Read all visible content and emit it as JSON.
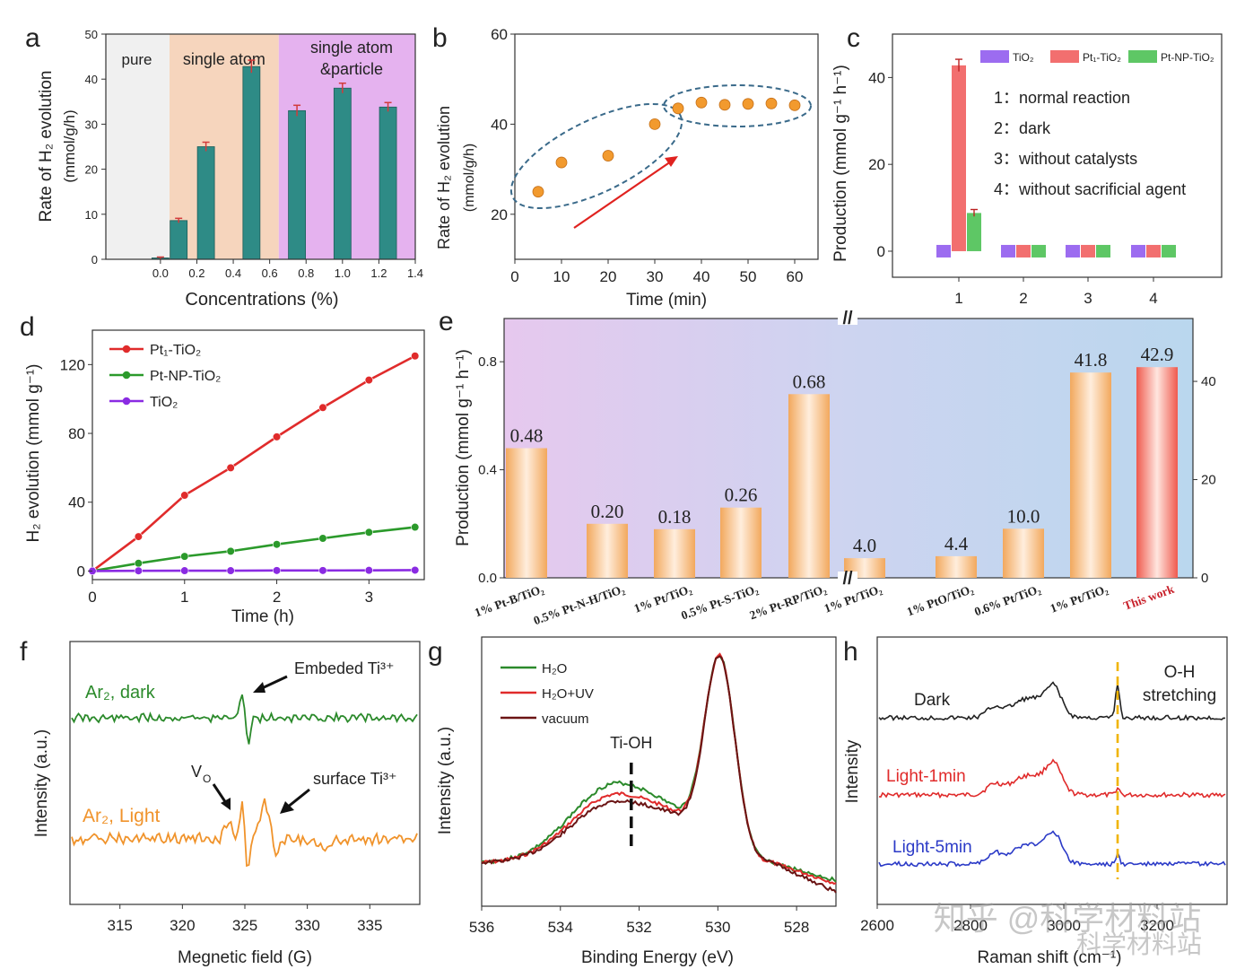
{
  "watermark": {
    "text1": "知乎 @科学材料站",
    "text2": "科学材料站"
  },
  "chart_data": [
    {
      "panel": "a",
      "type": "bar",
      "xlabel": "Concentrations (%)",
      "ylabel": "Rate of H₂ evolution",
      "ylabel2": "(mmol/g/h)",
      "xlim": [
        -0.3,
        1.4
      ],
      "ylim": [
        0,
        50
      ],
      "xticks": [
        "0.0",
        "0.2",
        "0.4",
        "0.6",
        "0.8",
        "1.0",
        "1.2",
        "1.4"
      ],
      "yticks": [
        "0",
        "10",
        "20",
        "30",
        "40",
        "50"
      ],
      "regions": [
        {
          "label": "pure",
          "x0": -0.3,
          "x1": 0.05,
          "color": "#f0f0f0"
        },
        {
          "label": "single atom",
          "x0": 0.05,
          "x1": 0.65,
          "color": "#f6d5bd"
        },
        {
          "label": "single atom",
          "label2": "&particle",
          "x0": 0.65,
          "x1": 1.4,
          "color": "#e5b2ef"
        }
      ],
      "bars": [
        {
          "x": 0.0,
          "y": 0.3,
          "err": 0.2
        },
        {
          "x": 0.1,
          "y": 8.6,
          "err": 0.5
        },
        {
          "x": 0.25,
          "y": 25.0,
          "err": 1.0
        },
        {
          "x": 0.5,
          "y": 42.8,
          "err": 1.4
        },
        {
          "x": 0.75,
          "y": 33.0,
          "err": 1.2
        },
        {
          "x": 1.0,
          "y": 38.0,
          "err": 1.1
        },
        {
          "x": 1.25,
          "y": 33.8,
          "err": 1.0
        }
      ],
      "bar_color": "#2e8b86"
    },
    {
      "panel": "b",
      "type": "scatter",
      "xlabel": "Time (min)",
      "ylabel": "Rate of H₂ evolution",
      "ylabel2": "(mmol/g/h)",
      "xlim": [
        0,
        65
      ],
      "ylim": [
        10,
        60
      ],
      "xticks": [
        "0",
        "10",
        "20",
        "30",
        "40",
        "50",
        "60"
      ],
      "yticks": [
        "20",
        "40",
        "60"
      ],
      "x": [
        5,
        10,
        20,
        30,
        35,
        40,
        45,
        50,
        55,
        60
      ],
      "y": [
        25,
        31.5,
        33,
        40,
        43.5,
        44.8,
        44.3,
        44.5,
        44.6,
        44.2
      ],
      "marker_color": "#f29a2e"
    },
    {
      "panel": "c",
      "type": "bar",
      "ylabel": "Production (mmol g⁻¹ h⁻¹)",
      "categories": [
        "1",
        "2",
        "3",
        "4"
      ],
      "ylim": [
        -6,
        50
      ],
      "yticks": [
        "0",
        "20",
        "40"
      ],
      "series": [
        {
          "name": "TiO₂",
          "values": [
            0,
            0,
            0,
            0
          ],
          "color": "#9c6cf0"
        },
        {
          "name": "Pt₁-TiO₂",
          "values": [
            42.8,
            0,
            0,
            0
          ],
          "err": [
            1.4,
            0,
            0,
            0
          ],
          "color": "#f26f6f"
        },
        {
          "name": "Pt-NP-TiO₂",
          "values": [
            8.8,
            0,
            0,
            0
          ],
          "err": [
            0.8,
            0,
            0,
            0
          ],
          "color": "#5ec765"
        }
      ],
      "notes": [
        "1：normal reaction",
        "2：dark",
        "3：without catalysts",
        "4：without sacrificial agent"
      ]
    },
    {
      "panel": "d",
      "type": "line",
      "xlabel": "Time (h)",
      "ylabel": "H₂ evolution (mmol g⁻¹)",
      "xlim": [
        0,
        3.6
      ],
      "ylim": [
        -5,
        140
      ],
      "xticks": [
        "0",
        "1",
        "2",
        "3"
      ],
      "yticks": [
        "0",
        "40",
        "80",
        "120"
      ],
      "x": [
        0,
        0.5,
        1,
        1.5,
        2,
        2.5,
        3,
        3.5
      ],
      "series": [
        {
          "name": "Pt₁-TiO₂",
          "values": [
            0,
            20,
            44,
            60,
            78,
            95,
            111,
            125
          ],
          "color": "#e02b2b"
        },
        {
          "name": "Pt-NP-TiO₂",
          "values": [
            0,
            4.5,
            8.5,
            11.5,
            15.5,
            19,
            22.5,
            25.5
          ],
          "color": "#2b9a2b"
        },
        {
          "name": "TiO₂",
          "values": [
            0,
            0.1,
            0.2,
            0.2,
            0.3,
            0.3,
            0.4,
            0.5
          ],
          "color": "#8a2be2"
        }
      ]
    },
    {
      "panel": "e",
      "type": "bar",
      "ylabel": "Production (mmol g⁻¹ h⁻¹)",
      "ylim_left": [
        0,
        0.96
      ],
      "yticks_left": [
        "0.0",
        "0.4",
        "0.8"
      ],
      "ylim_right": [
        0,
        52.8
      ],
      "yticks_right": [
        "0",
        "20",
        "40"
      ],
      "break_mark": "//",
      "categories": [
        "1% Pt-B/TiO₂",
        "0.5% Pt-N-H/TiO₂",
        "1% Pt/TiO₂",
        "0.5% Pt-S-TiO₂",
        "2% Pt-RP/TiO₂",
        "1% Pt/TiO₂",
        "1% PtO/TiO₂",
        "0.6% Pt/TiO₂",
        "1% Pt/TiO₂",
        "This work"
      ],
      "values": [
        0.48,
        0.2,
        0.18,
        0.26,
        0.68,
        4.0,
        4.4,
        10.0,
        41.8,
        42.9
      ],
      "labels": [
        "0.48",
        "0.20",
        "0.18",
        "0.26",
        "0.68",
        "4.0",
        "4.4",
        "10.0",
        "41.8",
        "42.9"
      ],
      "axis": [
        "left",
        "left",
        "left",
        "left",
        "left",
        "right",
        "right",
        "right",
        "right",
        "right"
      ]
    },
    {
      "panel": "f",
      "type": "line",
      "xlabel": "Megnetic field (G)",
      "ylabel": "Intensity (a.u.)",
      "xlim": [
        311,
        339
      ],
      "xticks": [
        "315",
        "320",
        "325",
        "330",
        "335"
      ],
      "series": [
        {
          "name": "Ar₂, dark",
          "color": "#2b8a2b"
        },
        {
          "name": "Ar₂, Light",
          "color": "#f0932b"
        }
      ],
      "annotations": [
        "Embeded Ti³⁺",
        "V",
        "O",
        "surface Ti³⁺"
      ]
    },
    {
      "panel": "g",
      "type": "line",
      "xlabel": "Binding Energy (eV)",
      "ylabel": "Intensity (a.u.)",
      "xlim": [
        536,
        527
      ],
      "xticks": [
        "536",
        "534",
        "532",
        "530",
        "528"
      ],
      "series": [
        {
          "name": "H₂O",
          "color": "#2b8a2b"
        },
        {
          "name": "H₂O+UV",
          "color": "#e02b2b"
        },
        {
          "name": "vacuum",
          "color": "#6b1414"
        }
      ],
      "annotations": [
        "Ti-OH"
      ]
    },
    {
      "panel": "h",
      "type": "line",
      "xlabel": "Raman shift (cm⁻¹)",
      "ylabel": "Intensity",
      "xlim": [
        2600,
        3700
      ],
      "xticks": [
        "2600",
        "2800",
        "3000",
        "3200"
      ],
      "series": [
        {
          "name": "Dark",
          "color": "#222222"
        },
        {
          "name": "Light-1min",
          "color": "#e02b2b"
        },
        {
          "name": "Light-5min",
          "color": "#2b3ac7"
        }
      ],
      "annotations": [
        "O-H",
        "stretching"
      ]
    }
  ]
}
